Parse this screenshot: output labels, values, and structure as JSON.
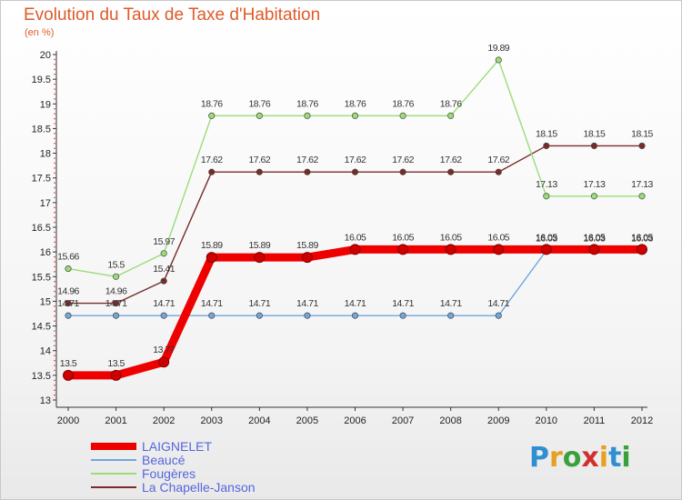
{
  "header": {
    "title": "Evolution du Taux de Taxe d'Habitation",
    "unit": "(en %)"
  },
  "logo": {
    "letters": [
      {
        "ch": "P",
        "color": "#2f8fd0"
      },
      {
        "ch": "r",
        "color": "#e8a020"
      },
      {
        "ch": "o",
        "color": "#3aa03a"
      },
      {
        "ch": "x",
        "color": "#d03030"
      },
      {
        "ch": "i",
        "color": "#e8a020"
      },
      {
        "ch": "t",
        "color": "#2f8fd0"
      },
      {
        "ch": "i",
        "color": "#3aa03a"
      }
    ]
  },
  "chart_data": {
    "type": "line",
    "title": "Evolution du Taux de Taxe d'Habitation",
    "ylabel": "(en %)",
    "xlabel": "",
    "x": [
      "2000",
      "2001",
      "2002",
      "2003",
      "2004",
      "2005",
      "2006",
      "2007",
      "2008",
      "2009",
      "2010",
      "2011",
      "2012"
    ],
    "ylim": [
      13,
      20
    ],
    "yticks": [
      "13",
      "13.5",
      "14",
      "14.5",
      "15",
      "15.5",
      "16",
      "16.5",
      "17",
      "17.5",
      "18",
      "18.5",
      "19",
      "19.5",
      "20"
    ],
    "grid": false,
    "legend_position": "bottom-left",
    "series": [
      {
        "name": "La Chapelle-Janson",
        "color": "#7a2a2a",
        "values": [
          14.96,
          14.96,
          15.41,
          17.62,
          17.62,
          17.62,
          17.62,
          17.62,
          17.62,
          17.62,
          18.15,
          18.15,
          18.15
        ],
        "labels": [
          "14.96",
          "14.96",
          "15.41",
          "17.62",
          "17.62",
          "17.62",
          "17.62",
          "17.62",
          "17.62",
          "17.62",
          "18.15",
          "18.15",
          "18.15"
        ]
      },
      {
        "name": "Fougères",
        "color": "#99dd77",
        "values": [
          15.66,
          15.5,
          15.97,
          18.76,
          18.76,
          18.76,
          18.76,
          18.76,
          18.76,
          19.89,
          17.13,
          17.13,
          17.13
        ],
        "labels": [
          "15.66",
          "15.5",
          "15.97",
          "18.76",
          "18.76",
          "18.76",
          "18.76",
          "18.76",
          "18.76",
          "19.89",
          "17.13",
          "17.13",
          "17.13"
        ]
      },
      {
        "name": "Beaucé",
        "color": "#6fa8dc",
        "values": [
          14.71,
          14.71,
          14.71,
          14.71,
          14.71,
          14.71,
          14.71,
          14.71,
          14.71,
          14.71,
          16.03,
          16.03,
          16.03
        ],
        "labels": [
          "14.71",
          "14.71",
          "14.71",
          "14.71",
          "14.71",
          "14.71",
          "14.71",
          "14.71",
          "14.71",
          "14.71",
          "16.03",
          "16.03",
          "16.03"
        ]
      },
      {
        "name": "LAIGNELET",
        "color": "#ee0000",
        "values": [
          13.5,
          13.5,
          13.77,
          15.89,
          15.89,
          15.89,
          16.05,
          16.05,
          16.05,
          16.05,
          16.05,
          16.05,
          16.05
        ],
        "labels": [
          "13.5",
          "13.5",
          "13.77",
          "15.89",
          "15.89",
          "15.89",
          "16.05",
          "16.05",
          "16.05",
          "16.05",
          "16.05",
          "16.05",
          "16.05"
        ]
      }
    ],
    "legend_order": [
      "LAIGNELET",
      "Beaucé",
      "Fougères",
      "La Chapelle-Janson"
    ]
  }
}
